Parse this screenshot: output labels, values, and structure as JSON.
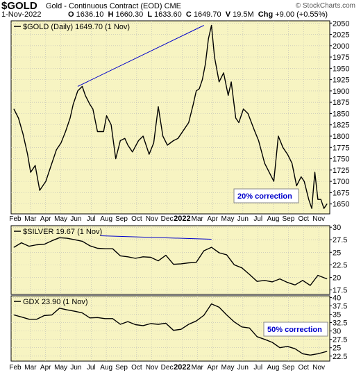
{
  "header": {
    "symbol": "$GOLD",
    "description": "Gold - Continuous Contract (EOD) CME",
    "credit": "© StockCharts.com",
    "date": "1-Nov-2022",
    "ohlc": [
      {
        "label": "O",
        "value": "1636.10"
      },
      {
        "label": "H",
        "value": "1660.30"
      },
      {
        "label": "L",
        "value": "1633.60"
      },
      {
        "label": "C",
        "value": "1649.70"
      },
      {
        "label": "V",
        "value": "19.5M"
      },
      {
        "label": "Chg",
        "value": "+9.00 (+0.55%)"
      }
    ]
  },
  "colors": {
    "panel_bg": "#f7f4c2",
    "price_line": "#000000",
    "trend_line": "#0000cc",
    "annotation_text": "#0000cc",
    "annotation_bg": "#ffffff"
  },
  "chart_data": [
    {
      "type": "line",
      "legend": "$GOLD (Daily) 1649.70 (1 Nov)",
      "x_tick_labels": [
        "Feb",
        "Mar",
        "Apr",
        "May",
        "Jun",
        "Jul",
        "Aug",
        "Sep",
        "Oct",
        "Nov",
        "Dec",
        "2022",
        "Mar",
        "Apr",
        "May",
        "Jun",
        "Jul",
        "Aug",
        "Sep",
        "Oct",
        "Nov"
      ],
      "yticks": [
        1650,
        1675,
        1700,
        1725,
        1750,
        1775,
        1800,
        1825,
        1850,
        1875,
        1900,
        1925,
        1950,
        1975,
        2000,
        2025,
        2050
      ],
      "ylim": [
        1628,
        2055
      ],
      "grid": true,
      "x_range": [
        0,
        20.6
      ],
      "series": [
        {
          "x": [
            0,
            0.3,
            0.6,
            0.9,
            1.1,
            1.4,
            1.7,
            2.1,
            2.4,
            2.8,
            3.1,
            3.4,
            3.7,
            3.9,
            4.2,
            4.5,
            4.7,
            5.0,
            5.2,
            5.5,
            5.9,
            6.1,
            6.4,
            6.7,
            7.0,
            7.3,
            7.5,
            7.8,
            8.2,
            8.5,
            8.9,
            9.2,
            9.5,
            9.8,
            10.1,
            10.5,
            10.8,
            11.2,
            11.5,
            11.8,
            12.0,
            12.2,
            12.4,
            12.6,
            12.8,
            13.0,
            13.2,
            13.5,
            13.8,
            14.1,
            14.3,
            14.6,
            14.8,
            15.1,
            15.4,
            15.8,
            16.1,
            16.5,
            16.8,
            17.1,
            17.4,
            17.7,
            18.0,
            18.3,
            18.6,
            18.9,
            19.1,
            19.4,
            19.6,
            19.8,
            20.0,
            20.2,
            20.4,
            20.6
          ],
          "y": [
            1860,
            1840,
            1805,
            1760,
            1720,
            1735,
            1680,
            1700,
            1730,
            1770,
            1785,
            1810,
            1840,
            1870,
            1900,
            1910,
            1890,
            1870,
            1860,
            1810,
            1810,
            1845,
            1825,
            1750,
            1790,
            1795,
            1780,
            1765,
            1790,
            1800,
            1760,
            1785,
            1865,
            1800,
            1780,
            1790,
            1795,
            1815,
            1830,
            1870,
            1900,
            1905,
            1925,
            1960,
            2015,
            2045,
            1975,
            1920,
            1940,
            1890,
            1920,
            1840,
            1830,
            1860,
            1850,
            1815,
            1790,
            1740,
            1720,
            1700,
            1800,
            1775,
            1760,
            1740,
            1690,
            1710,
            1700,
            1660,
            1640,
            1720,
            1660,
            1660,
            1640,
            1650
          ]
        }
      ],
      "trend_line": {
        "x": [
          4.2,
          12.5
        ],
        "y": [
          1910,
          2045
        ]
      },
      "annotation": "20% correction"
    },
    {
      "type": "line",
      "legend": "$SILVER 19.67 (1 Nov)",
      "yticks": [
        17.5,
        20.0,
        22.5,
        25.0,
        27.5,
        30.0
      ],
      "ylim": [
        16.6,
        30.3
      ],
      "grid": true,
      "x_range": [
        0,
        20.6
      ],
      "series": [
        {
          "x": [
            0,
            0.5,
            1.0,
            1.5,
            2.0,
            2.5,
            3.0,
            3.5,
            4.0,
            4.5,
            5.0,
            5.5,
            6.0,
            6.5,
            7.0,
            7.5,
            8.0,
            8.5,
            9.0,
            9.5,
            10.0,
            10.5,
            11.0,
            11.5,
            12.0,
            12.5,
            13.0,
            13.5,
            14.0,
            14.5,
            15.0,
            15.5,
            16.0,
            16.5,
            17.0,
            17.5,
            18.0,
            18.5,
            19.0,
            19.5,
            20.0,
            20.6
          ],
          "y": [
            26.0,
            26.9,
            26.2,
            26.5,
            26.6,
            27.3,
            27.9,
            27.8,
            27.5,
            27.2,
            26.3,
            25.8,
            25.7,
            25.7,
            24.3,
            24.1,
            23.8,
            24.1,
            24.0,
            23.3,
            24.4,
            22.6,
            22.7,
            22.9,
            23.0,
            25.3,
            26.0,
            24.9,
            24.5,
            22.5,
            21.9,
            20.6,
            19.2,
            19.4,
            19.1,
            19.7,
            19.0,
            18.5,
            19.4,
            18.4,
            20.4,
            19.7
          ]
        }
      ],
      "trend_line": {
        "x": [
          5.7,
          13.0
        ],
        "y": [
          28.3,
          27.6
        ]
      }
    },
    {
      "type": "line",
      "legend": "GDX 23.90 (1 Nov)",
      "x_tick_labels": [
        "Feb",
        "Mar",
        "Apr",
        "May",
        "Jun",
        "Jul",
        "Aug",
        "Sep",
        "Oct",
        "Nov",
        "Dec",
        "2022",
        "Mar",
        "Apr",
        "May",
        "Jun",
        "Jul",
        "Aug",
        "Sep",
        "Oct",
        "Nov"
      ],
      "yticks": [
        22.5,
        25.0,
        27.5,
        30.0,
        32.5,
        35.0,
        37.5,
        40.0
      ],
      "ylim": [
        21.0,
        40.5
      ],
      "grid": true,
      "x_range": [
        0,
        20.6
      ],
      "series": [
        {
          "x": [
            0,
            0.5,
            1.0,
            1.5,
            2.0,
            2.5,
            3.0,
            3.5,
            4.0,
            4.5,
            5.0,
            5.5,
            6.0,
            6.5,
            7.0,
            7.5,
            8.0,
            8.5,
            9.0,
            9.5,
            10.0,
            10.5,
            11.0,
            11.5,
            12.0,
            12.5,
            13.0,
            13.5,
            14.0,
            14.5,
            15.0,
            15.5,
            16.0,
            16.5,
            17.0,
            17.5,
            18.0,
            18.5,
            19.0,
            19.5,
            20.0,
            20.6
          ],
          "y": [
            34.8,
            34.2,
            33.5,
            33.5,
            34.6,
            34.8,
            36.8,
            36.3,
            35.9,
            35.4,
            33.9,
            34.0,
            33.7,
            33.7,
            32.0,
            32.8,
            31.9,
            31.6,
            32.2,
            32.0,
            32.3,
            30.2,
            30.5,
            32.0,
            33.0,
            34.7,
            38.1,
            37.1,
            34.8,
            32.7,
            31.2,
            30.9,
            28.3,
            27.5,
            26.6,
            25.0,
            25.4,
            24.7,
            23.2,
            22.8,
            23.2,
            23.9
          ]
        }
      ],
      "annotation": "50% correction"
    }
  ]
}
